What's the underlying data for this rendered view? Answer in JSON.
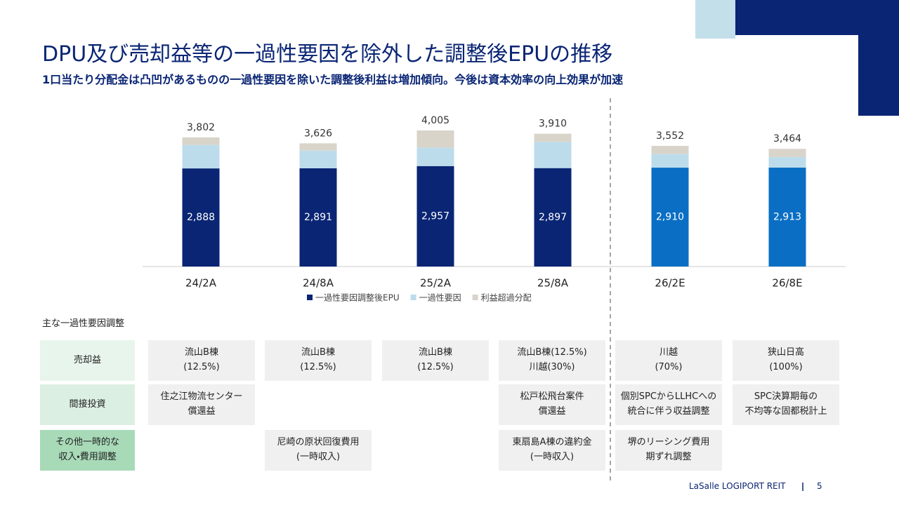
{
  "header": {
    "title": "DPU及び売却益等の一過性要因を除外した調整後EPUの推移",
    "subtitle": "1口当たり分配金は凸凹があるものの一過性要因を除いた調整後利益は増加傾向。今後は資本効率の向上効果が加速"
  },
  "chart_data": {
    "type": "stacked-bar",
    "categories": [
      "24/2A",
      "24/8A",
      "25/2A",
      "25/8A",
      "26/2E",
      "26/8E"
    ],
    "series": [
      {
        "name": "一過性要因調整後EPU",
        "color": "#0a2574",
        "point_colors": [
          "#0a2574",
          "#0a2574",
          "#0a2574",
          "#0a2574",
          "#0a6fc4",
          "#0a6fc4"
        ],
        "values": [
          2888,
          2891,
          2957,
          2897,
          2910,
          2913
        ],
        "value_labels": [
          "2,888",
          "2,891",
          "2,957",
          "2,897",
          "2,910",
          "2,913"
        ]
      },
      {
        "name": "一過性要因",
        "color": "#bcdcec",
        "values": [
          690,
          520,
          540,
          770,
          400,
          310
        ]
      },
      {
        "name": "利益超過分配",
        "color": "#d9d4ca",
        "values": [
          224,
          215,
          508,
          243,
          242,
          241
        ]
      }
    ],
    "totals": [
      3802,
      3626,
      4005,
      3910,
      3552,
      3464
    ],
    "total_labels": [
      "3,802",
      "3,626",
      "4,005",
      "3,910",
      "3,552",
      "3,464"
    ],
    "legend": "bottom"
  },
  "table": {
    "title": "主な一過性要因調整",
    "row_headers": [
      "売却益",
      "間接投資",
      "その他一時的な\n収入・費用調整"
    ],
    "rows": [
      [
        "流山B棟\n(12.5%)",
        "流山B棟\n(12.5%)",
        "流山B棟\n(12.5%)",
        "流山B棟(12.5%)\n川越(30%)",
        "川越\n(70%)",
        "狭山日高\n(100%)"
      ],
      [
        "住之江物流センター\n償還益",
        null,
        null,
        "松戸松飛台案件\n償還益",
        "個別SPCからLLHCへの\n統合に伴う収益調整",
        "SPC決算期毎の\n不均等な固都税計上"
      ],
      [
        null,
        "尼崎の原状回復費用\n(一時収入)",
        null,
        "東扇島A棟の違約金\n(一時収入)",
        "堺のリーシング費用\n期ずれ調整",
        null
      ]
    ]
  },
  "footer": {
    "brand": "LaSalle LOGIPORT REIT",
    "page": "5"
  }
}
